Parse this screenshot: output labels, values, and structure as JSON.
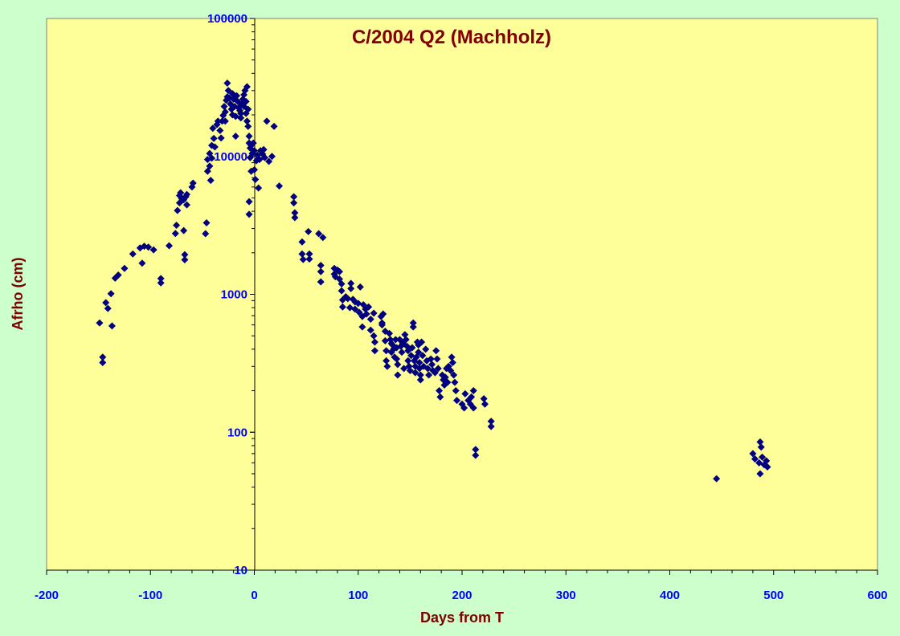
{
  "chart_data": {
    "type": "scatter",
    "title": "C/2004 Q2 (Machholz)",
    "xlabel": "Days from T",
    "ylabel": "Afrho (cm)",
    "xlim": [
      -200,
      600
    ],
    "ylim": [
      10,
      100000
    ],
    "yscale": "log",
    "grid": false,
    "legend": "none",
    "x_ticks": [
      "-200",
      "-100",
      "0",
      "100",
      "200",
      "300",
      "400",
      "500",
      "600"
    ],
    "y_ticks": [
      "10",
      "100",
      "1000",
      "10000",
      "100000"
    ],
    "colors": {
      "background": "#ccffcc",
      "plot_area": "#ffff99",
      "marker": "#000080",
      "tick_labels": "#0000ff",
      "titles": "#800000"
    },
    "series": [
      {
        "points": [
          [
            -149,
            620
          ],
          [
            -146,
            350
          ],
          [
            -146,
            320
          ],
          [
            -143,
            870
          ],
          [
            -141,
            790
          ],
          [
            -138,
            1010
          ],
          [
            -137,
            590
          ],
          [
            -134,
            1310
          ],
          [
            -131,
            1380
          ],
          [
            -125,
            1540
          ],
          [
            -117,
            1960
          ],
          [
            -110,
            2170
          ],
          [
            -108,
            1680
          ],
          [
            -106,
            2230
          ],
          [
            -102,
            2200
          ],
          [
            -97,
            2100
          ],
          [
            -90,
            1300
          ],
          [
            -90,
            1210
          ],
          [
            -82,
            2250
          ],
          [
            -76,
            2760
          ],
          [
            -75,
            3170
          ],
          [
            -74,
            4050
          ],
          [
            -72,
            4600
          ],
          [
            -72,
            5200
          ],
          [
            -71,
            5450
          ],
          [
            -70,
            4950
          ],
          [
            -68,
            4850
          ],
          [
            -68,
            2900
          ],
          [
            -67,
            1940
          ],
          [
            -67,
            1780
          ],
          [
            -66,
            5100
          ],
          [
            -65,
            5300
          ],
          [
            -65,
            4450
          ],
          [
            -60,
            6000
          ],
          [
            -59,
            6400
          ],
          [
            -47,
            2750
          ],
          [
            -46,
            3300
          ],
          [
            -45,
            7800
          ],
          [
            -45,
            9500
          ],
          [
            -43,
            10500
          ],
          [
            -43,
            8500
          ],
          [
            -42,
            6700
          ],
          [
            -41,
            12000
          ],
          [
            -41,
            9700
          ],
          [
            -40,
            16000
          ],
          [
            -39,
            13500
          ],
          [
            -38,
            11700
          ],
          [
            -36,
            17000
          ],
          [
            -35,
            18000
          ],
          [
            -33,
            15400
          ],
          [
            -32,
            13600
          ],
          [
            -31,
            18000
          ],
          [
            -30,
            19800
          ],
          [
            -29,
            23000
          ],
          [
            -28,
            21000
          ],
          [
            -28,
            18000
          ],
          [
            -27,
            25500
          ],
          [
            -26,
            27000
          ],
          [
            -26,
            34000
          ],
          [
            -25,
            30000
          ],
          [
            -24,
            26500
          ],
          [
            -23,
            24000
          ],
          [
            -22,
            22000
          ],
          [
            -21,
            20000
          ],
          [
            -21,
            28500
          ],
          [
            -20,
            26000
          ],
          [
            -19,
            23000
          ],
          [
            -18,
            19500
          ],
          [
            -18,
            14000
          ],
          [
            -17,
            27500
          ],
          [
            -16,
            25000
          ],
          [
            -15,
            22500
          ],
          [
            -14,
            21500
          ],
          [
            -13,
            20500
          ],
          [
            -13,
            19000
          ],
          [
            -12,
            24000
          ],
          [
            -11,
            26000
          ],
          [
            -10,
            23000
          ],
          [
            -10,
            28000
          ],
          [
            -9,
            30000
          ],
          [
            -8,
            25000
          ],
          [
            -8,
            20500
          ],
          [
            -7,
            18000
          ],
          [
            -7,
            32000
          ],
          [
            -6,
            22000
          ],
          [
            -6,
            16500
          ],
          [
            -5,
            14000
          ],
          [
            -5,
            12500
          ],
          [
            -4,
            11500
          ],
          [
            -4,
            9800
          ],
          [
            -5,
            4700
          ],
          [
            -5,
            3800
          ],
          [
            -3,
            7800
          ],
          [
            -3,
            12000
          ],
          [
            -2,
            10500
          ],
          [
            -1,
            12500
          ],
          [
            0,
            11000
          ],
          [
            0,
            8000
          ],
          [
            1,
            6800
          ],
          [
            2,
            9300
          ],
          [
            3,
            10200
          ],
          [
            4,
            5900
          ],
          [
            5,
            9500
          ],
          [
            6,
            11000
          ],
          [
            8,
            10400
          ],
          [
            9,
            11200
          ],
          [
            10,
            9800
          ],
          [
            12,
            18000
          ],
          [
            14,
            9200
          ],
          [
            17,
            10000
          ],
          [
            19,
            16500
          ],
          [
            24,
            6100
          ],
          [
            38,
            5100
          ],
          [
            38,
            4600
          ],
          [
            39,
            3900
          ],
          [
            39,
            3600
          ],
          [
            46,
            2400
          ],
          [
            46,
            1960
          ],
          [
            47,
            1790
          ],
          [
            52,
            2850
          ],
          [
            53,
            1960
          ],
          [
            53,
            1800
          ],
          [
            62,
            2750
          ],
          [
            64,
            1620
          ],
          [
            64,
            1460
          ],
          [
            64,
            1230
          ],
          [
            66,
            2580
          ],
          [
            77,
            1540
          ],
          [
            77,
            1400
          ],
          [
            78,
            1340
          ],
          [
            80,
            1500
          ],
          [
            82,
            1460
          ],
          [
            82,
            1290
          ],
          [
            84,
            1190
          ],
          [
            84,
            1060
          ],
          [
            85,
            910
          ],
          [
            85,
            810
          ],
          [
            88,
            960
          ],
          [
            90,
            930
          ],
          [
            92,
            800
          ],
          [
            93,
            1200
          ],
          [
            93,
            1100
          ],
          [
            95,
            920
          ],
          [
            97,
            880
          ],
          [
            97,
            780
          ],
          [
            100,
            860
          ],
          [
            101,
            740
          ],
          [
            102,
            1130
          ],
          [
            104,
            690
          ],
          [
            104,
            580
          ],
          [
            105,
            840
          ],
          [
            107,
            780
          ],
          [
            108,
            720
          ],
          [
            110,
            810
          ],
          [
            112,
            660
          ],
          [
            112,
            550
          ],
          [
            115,
            730
          ],
          [
            115,
            500
          ],
          [
            116,
            450
          ],
          [
            116,
            390
          ],
          [
            122,
            690
          ],
          [
            123,
            600
          ],
          [
            123,
            620
          ],
          [
            124,
            720
          ],
          [
            126,
            540
          ],
          [
            126,
            460
          ],
          [
            127,
            390
          ],
          [
            127,
            330
          ],
          [
            128,
            300
          ],
          [
            130,
            520
          ],
          [
            131,
            470
          ],
          [
            132,
            440
          ],
          [
            132,
            380
          ],
          [
            133,
            430
          ],
          [
            134,
            400
          ],
          [
            135,
            350
          ],
          [
            136,
            470
          ],
          [
            137,
            410
          ],
          [
            137,
            340
          ],
          [
            138,
            310
          ],
          [
            138,
            260
          ],
          [
            140,
            470
          ],
          [
            141,
            420
          ],
          [
            142,
            380
          ],
          [
            143,
            440
          ],
          [
            144,
            290
          ],
          [
            145,
            510
          ],
          [
            146,
            470
          ],
          [
            147,
            420
          ],
          [
            148,
            390
          ],
          [
            148,
            330
          ],
          [
            149,
            300
          ],
          [
            150,
            280
          ],
          [
            151,
            360
          ],
          [
            152,
            410
          ],
          [
            153,
            620
          ],
          [
            153,
            580
          ],
          [
            154,
            330
          ],
          [
            155,
            300
          ],
          [
            155,
            270
          ],
          [
            156,
            350
          ],
          [
            157,
            450
          ],
          [
            158,
            430
          ],
          [
            158,
            380
          ],
          [
            159,
            320
          ],
          [
            159,
            290
          ],
          [
            160,
            240
          ],
          [
            160,
            260
          ],
          [
            161,
            450
          ],
          [
            162,
            360
          ],
          [
            163,
            300
          ],
          [
            165,
            400
          ],
          [
            166,
            330
          ],
          [
            167,
            290
          ],
          [
            168,
            260
          ],
          [
            170,
            340
          ],
          [
            171,
            310
          ],
          [
            172,
            280
          ],
          [
            174,
            270
          ],
          [
            175,
            390
          ],
          [
            176,
            340
          ],
          [
            177,
            290
          ],
          [
            178,
            200
          ],
          [
            179,
            180
          ],
          [
            181,
            260
          ],
          [
            182,
            240
          ],
          [
            183,
            220
          ],
          [
            184,
            250
          ],
          [
            185,
            290
          ],
          [
            186,
            230
          ],
          [
            187,
            300
          ],
          [
            189,
            280
          ],
          [
            190,
            350
          ],
          [
            191,
            320
          ],
          [
            192,
            260
          ],
          [
            193,
            230
          ],
          [
            194,
            200
          ],
          [
            195,
            170
          ],
          [
            200,
            160
          ],
          [
            202,
            150
          ],
          [
            203,
            190
          ],
          [
            206,
            170
          ],
          [
            208,
            160
          ],
          [
            209,
            180
          ],
          [
            211,
            200
          ],
          [
            211,
            150
          ],
          [
            213,
            75
          ],
          [
            213,
            68
          ],
          [
            221,
            175
          ],
          [
            222,
            160
          ],
          [
            228,
            120
          ],
          [
            228,
            110
          ],
          [
            445,
            46
          ],
          [
            480,
            70
          ],
          [
            482,
            64
          ],
          [
            486,
            60
          ],
          [
            487,
            50
          ],
          [
            487,
            85
          ],
          [
            488,
            78
          ],
          [
            489,
            66
          ],
          [
            491,
            58
          ],
          [
            493,
            62
          ],
          [
            494,
            56
          ]
        ]
      }
    ]
  }
}
